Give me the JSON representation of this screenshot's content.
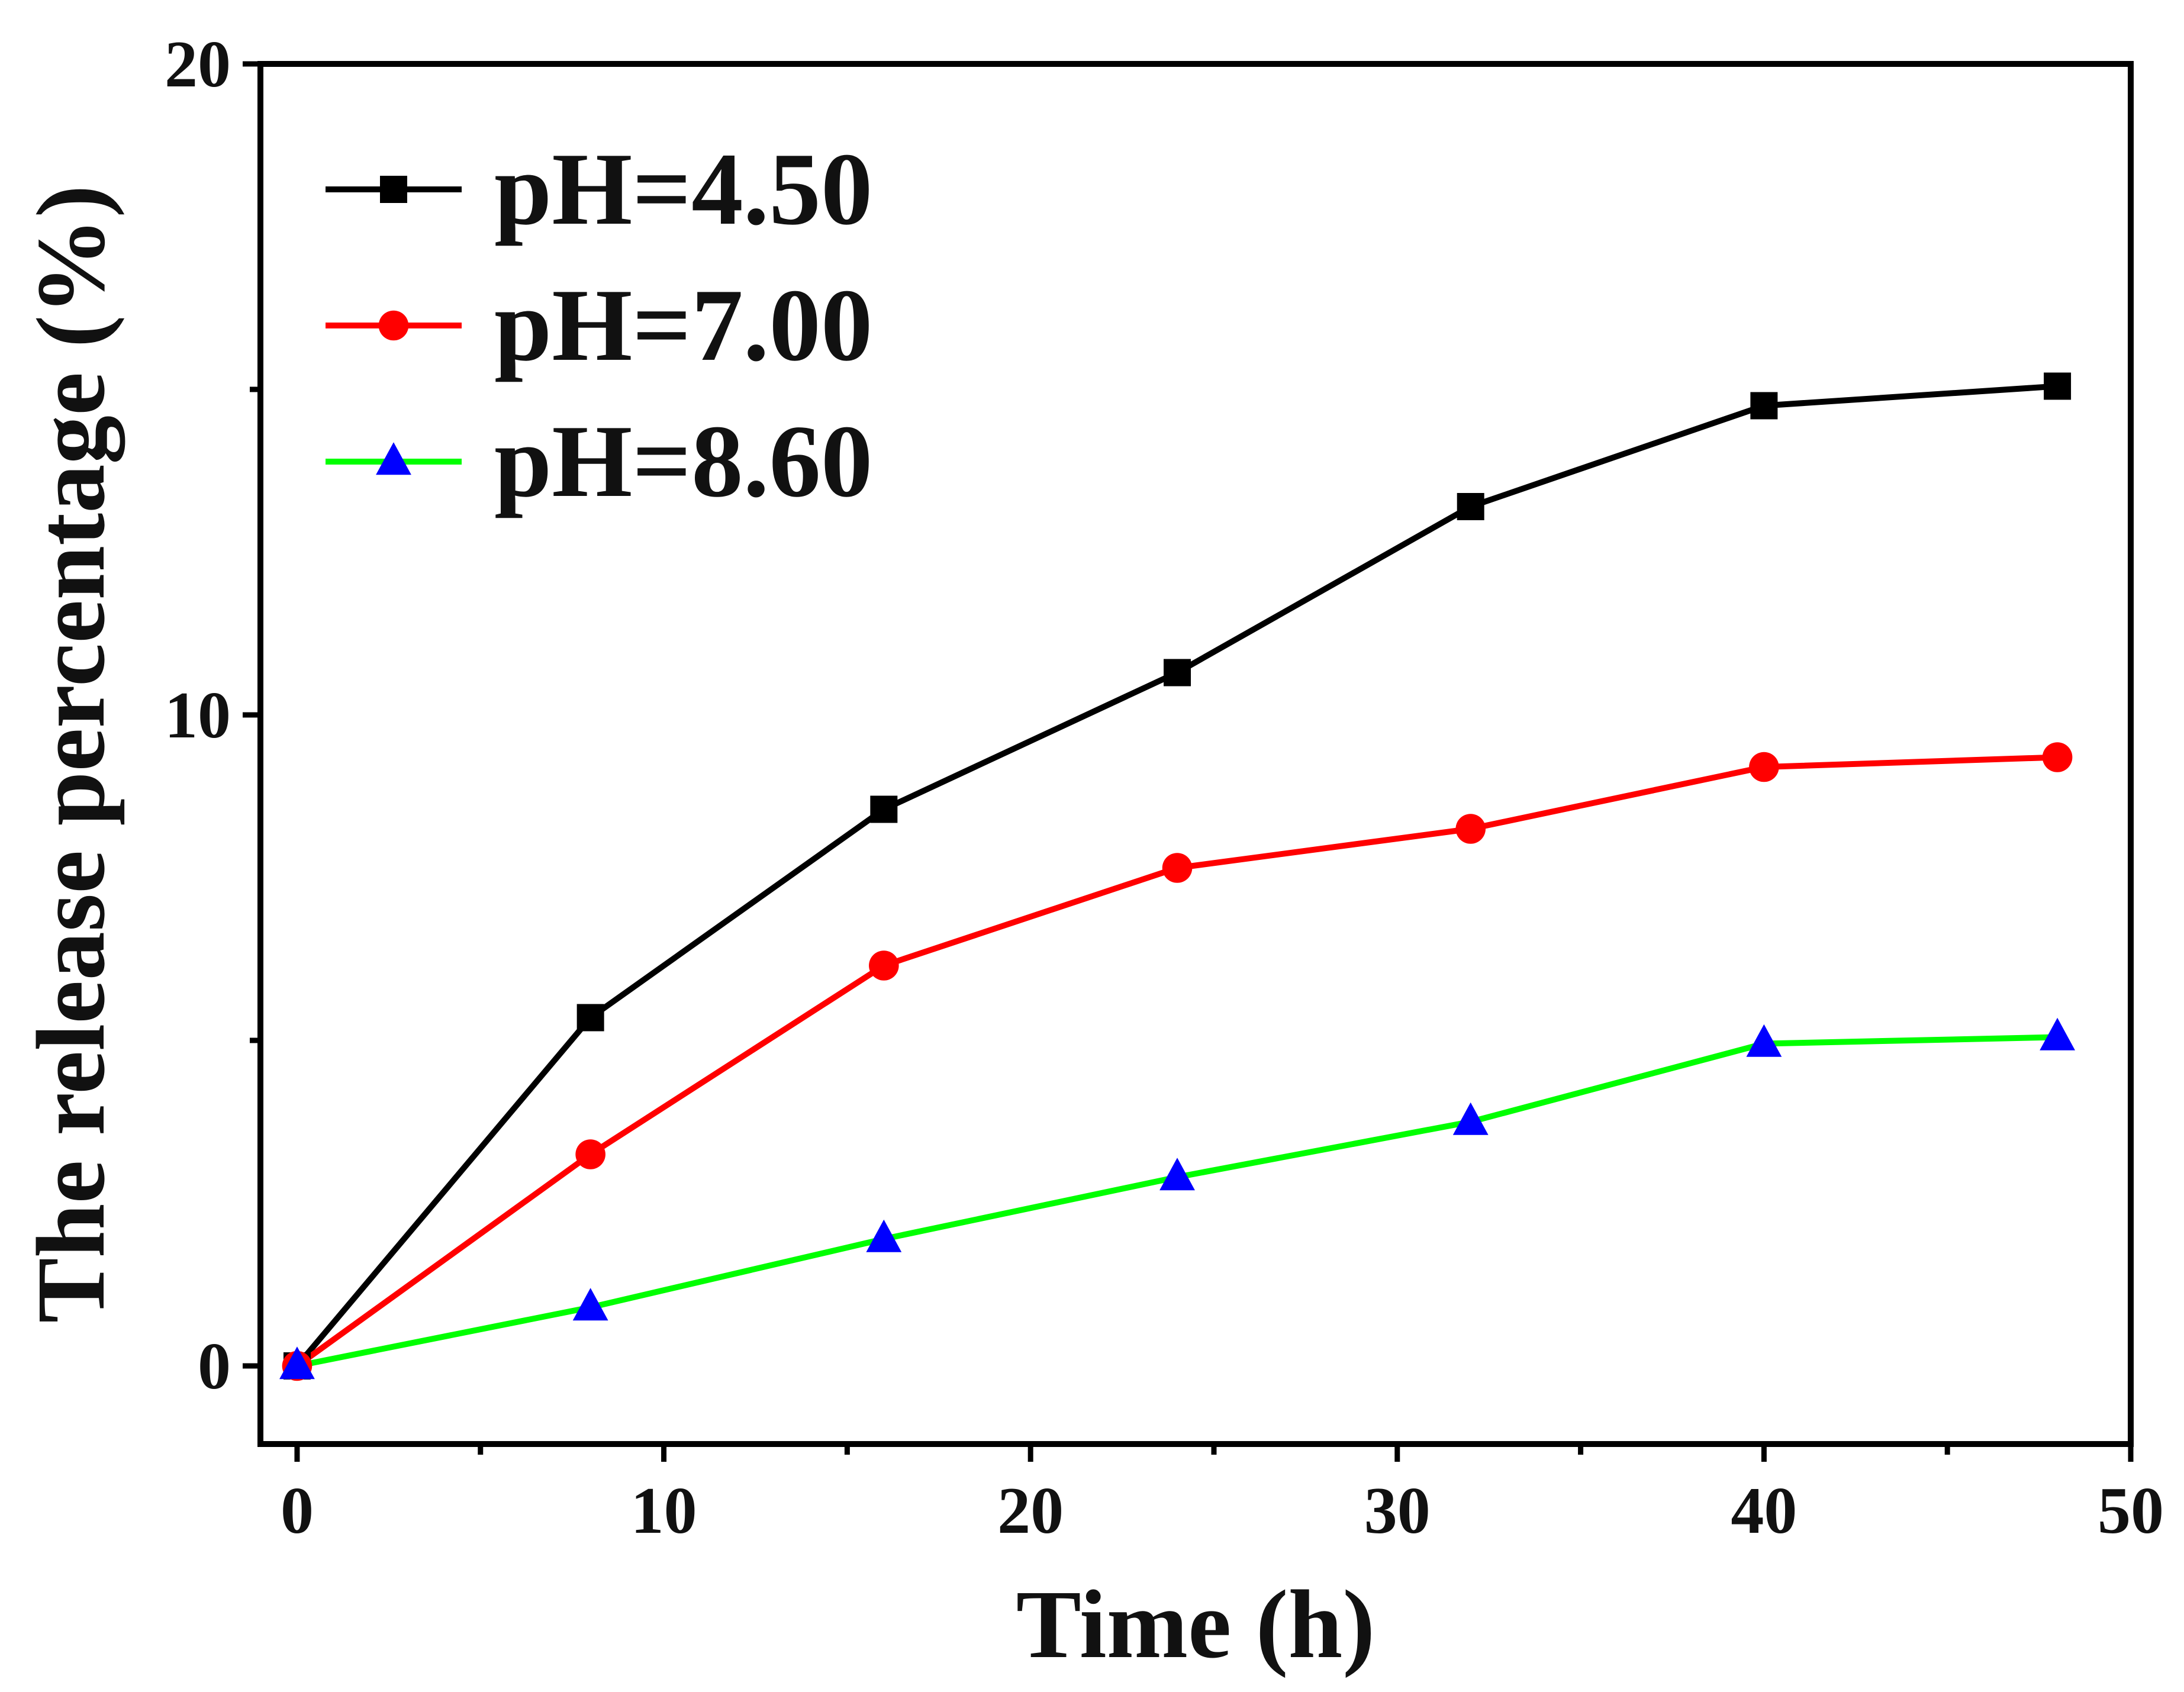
{
  "chart_data": {
    "type": "line",
    "title": "",
    "xlabel": "Time (h)",
    "ylabel": "The release percentage (%)",
    "xlim": [
      -1,
      50
    ],
    "ylim": [
      -1.2,
      20
    ],
    "xticks": [
      0,
      10,
      20,
      30,
      40,
      50
    ],
    "xtick_labels": [
      "0",
      "10",
      "20",
      "30",
      "40",
      "50"
    ],
    "yticks": [
      0,
      10,
      20
    ],
    "ytick_labels": [
      "0",
      "10",
      "20"
    ],
    "grid": false,
    "legend_position": "top-left",
    "x": [
      0,
      8,
      16,
      24,
      32,
      40,
      48
    ],
    "series": [
      {
        "name": "pH=4.50",
        "values": [
          0,
          5.35,
          8.55,
          10.65,
          13.2,
          14.75,
          15.05
        ],
        "color": "#000000",
        "marker": "square"
      },
      {
        "name": "pH=7.00",
        "values": [
          0,
          3.25,
          6.15,
          7.65,
          8.25,
          9.2,
          9.35
        ],
        "color": "#ff0000",
        "marker": "circle"
      },
      {
        "name": "pH=8.60",
        "values": [
          0,
          0.9,
          1.95,
          2.9,
          3.75,
          4.95,
          5.05
        ],
        "color": "#00ff00",
        "marker": "triangle",
        "marker_color": "#0000ff"
      }
    ]
  }
}
